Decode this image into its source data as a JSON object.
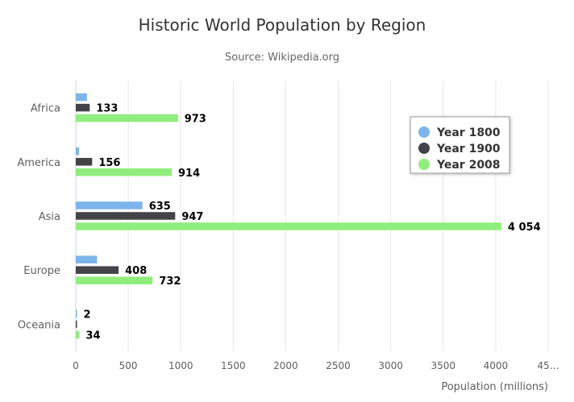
{
  "chart_data": {
    "type": "bar",
    "orientation": "horizontal",
    "title": "Historic World Population by Region",
    "subtitle": "Source: Wikipedia.org",
    "categories": [
      "Africa",
      "America",
      "Asia",
      "Europe",
      "Oceania"
    ],
    "series": [
      {
        "name": "Year 1800",
        "color": "#7cb5ec",
        "values": [
          107,
          31,
          635,
          203,
          2
        ],
        "show_labels": [
          false,
          false,
          true,
          false,
          true
        ]
      },
      {
        "name": "Year 1900",
        "color": "#434348",
        "values": [
          133,
          156,
          947,
          408,
          6
        ],
        "show_labels": [
          true,
          true,
          true,
          true,
          false
        ]
      },
      {
        "name": "Year 2008",
        "color": "#90ed7d",
        "values": [
          973,
          914,
          4054,
          732,
          34
        ],
        "show_labels": [
          true,
          true,
          true,
          true,
          true
        ]
      }
    ],
    "xlabel": "",
    "ylabel": "Population (millions)",
    "ylim": [
      0,
      4500
    ],
    "ticks": [
      "0",
      "500",
      "1000",
      "1500",
      "2000",
      "2500",
      "3000",
      "3500",
      "4000",
      "45…"
    ],
    "tick_values": [
      0,
      500,
      1000,
      1500,
      2000,
      2500,
      3000,
      3500,
      4000,
      4500
    ],
    "grid": true,
    "legend_position": "top-right"
  }
}
